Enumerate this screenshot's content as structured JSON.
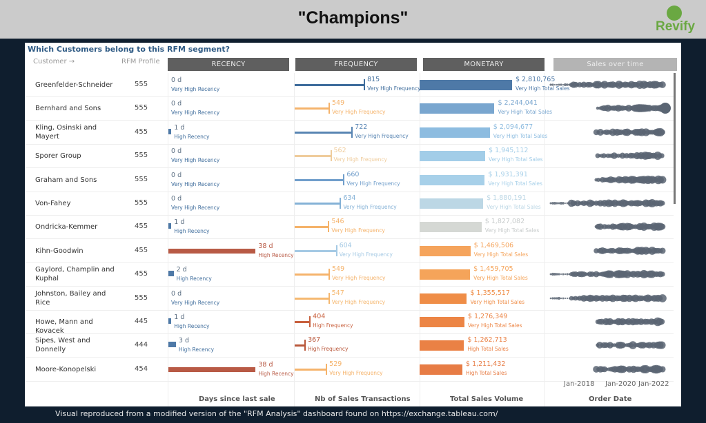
{
  "header": {
    "title": "\"Champions\"",
    "logo_text": "Revify"
  },
  "panel": {
    "question": "Which Customers belong to this RFM segment?",
    "col_customer": "Customer →",
    "col_rfm": "RFM Profile",
    "headers": {
      "recency": "RECENCY",
      "frequency": "FREQUENCY",
      "monetary": "MONETARY",
      "sales": "Sales over time"
    },
    "axis_labels": {
      "recency": "Days since last sale",
      "frequency": "Nb of Sales Transactions",
      "monetary": "Total Sales Volume",
      "sales": "Order Date"
    },
    "date_ticks": [
      "Jan-2018",
      "Jan-2020",
      "Jan-2022"
    ]
  },
  "rows": [
    {
      "customer": "Greenfelder-Schneider",
      "rfm": "555",
      "recency_days": 0,
      "recency": "0 d",
      "recency_label": "Very High Recency",
      "frequency": 815,
      "frequency_text": "815",
      "frequency_label": "Very High Frequency",
      "monetary": 2810765,
      "monetary_text": "$ 2,810,765",
      "monetary_label": "Very High Total Sales",
      "fcolor": "#3f6d9c",
      "mcolor": "#4e79a7"
    },
    {
      "customer": "Bernhard and Sons",
      "rfm": "555",
      "recency_days": 0,
      "recency": "0 d",
      "recency_label": "Very High Recency",
      "frequency": 549,
      "frequency_text": "549",
      "frequency_label": "Very High Frequency",
      "monetary": 2244041,
      "monetary_text": "$ 2,244,041",
      "monetary_label": "Very High Total Sales",
      "fcolor": "#f5b36b",
      "mcolor": "#79a6cf"
    },
    {
      "customer": "Kling, Osinski and Mayert",
      "rfm": "455",
      "recency_days": 1,
      "recency": "1 d",
      "recency_label": "High Recency",
      "frequency": 722,
      "frequency_text": "722",
      "frequency_label": "Very High Frequency",
      "monetary": 2094677,
      "monetary_text": "$ 2,094,677",
      "monetary_label": "Very High Total Sales",
      "fcolor": "#5784b2",
      "mcolor": "#8dbce0"
    },
    {
      "customer": "Sporer Group",
      "rfm": "555",
      "recency_days": 0,
      "recency": "0 d",
      "recency_label": "Very High Recency",
      "frequency": 562,
      "frequency_text": "562",
      "frequency_label": "Very High Frequency",
      "monetary": 1945112,
      "monetary_text": "$ 1,945,112",
      "monetary_label": "Very High Total Sales",
      "fcolor": "#efcc9c",
      "mcolor": "#a2cde8"
    },
    {
      "customer": "Graham and Sons",
      "rfm": "555",
      "recency_days": 0,
      "recency": "0 d",
      "recency_label": "Very High Recency",
      "frequency": 660,
      "frequency_text": "660",
      "frequency_label": "Very High Frequency",
      "monetary": 1931391,
      "monetary_text": "$ 1,931,391",
      "monetary_label": "Very High Total Sales",
      "fcolor": "#709ecb",
      "mcolor": "#a7d0e9"
    },
    {
      "customer": "Von-Fahey",
      "rfm": "555",
      "recency_days": 0,
      "recency": "0 d",
      "recency_label": "Very High Recency",
      "frequency": 634,
      "frequency_text": "634",
      "frequency_label": "Very High Frequency",
      "monetary": 1880191,
      "monetary_text": "$ 1,880,191",
      "monetary_label": "Very High Total Sales",
      "fcolor": "#84b1d6",
      "mcolor": "#bcd7e5"
    },
    {
      "customer": "Ondricka-Kemmer",
      "rfm": "455",
      "recency_days": 1,
      "recency": "1 d",
      "recency_label": "High Recency",
      "frequency": 546,
      "frequency_text": "546",
      "frequency_label": "Very High Frequency",
      "monetary": 1827082,
      "monetary_text": "$ 1,827,082",
      "monetary_label": "Very High Total Sales",
      "fcolor": "#f5b36b",
      "mcolor": "#d5d8d4"
    },
    {
      "customer": "Kihn-Goodwin",
      "rfm": "455",
      "recency_days": 38,
      "recency": "38 d",
      "recency_label": "High Recency",
      "frequency": 604,
      "frequency_text": "604",
      "frequency_label": "Very High Frequency",
      "monetary": 1469506,
      "monetary_text": "$ 1,469,506",
      "monetary_label": "Very High Total Sales",
      "fcolor": "#a4c9e4",
      "mcolor": "#f5a45c"
    },
    {
      "customer": "Gaylord, Champlin and Kuphal",
      "rfm": "455",
      "recency_days": 2,
      "recency": "2 d",
      "recency_label": "High Recency",
      "frequency": 549,
      "frequency_text": "549",
      "frequency_label": "Very High Frequency",
      "monetary": 1459705,
      "monetary_text": "$ 1,459,705",
      "monetary_label": "Very High Total Sales",
      "fcolor": "#f5b36b",
      "mcolor": "#f5a45a"
    },
    {
      "customer": "Johnston, Bailey and Rice",
      "rfm": "555",
      "recency_days": 0,
      "recency": "0 d",
      "recency_label": "Very High Recency",
      "frequency": 547,
      "frequency_text": "547",
      "frequency_label": "Very High Frequency",
      "monetary": 1355517,
      "monetary_text": "$ 1,355,517",
      "monetary_label": "Very High Total Sales",
      "fcolor": "#f5b870",
      "mcolor": "#ef8d47"
    },
    {
      "customer": "Howe, Mann and Kovacek",
      "rfm": "445",
      "recency_days": 1,
      "recency": "1 d",
      "recency_label": "High Recency",
      "frequency": 404,
      "frequency_text": "404",
      "frequency_label": "High Frequency",
      "monetary": 1276349,
      "monetary_text": "$ 1,276,349",
      "monetary_label": "Very High Total Sales",
      "fcolor": "#c8603d",
      "mcolor": "#ec8545"
    },
    {
      "customer": "Sipes, West and Donnelly",
      "rfm": "444",
      "recency_days": 3,
      "recency": "3 d",
      "recency_label": "High Recency",
      "frequency": 367,
      "frequency_text": "367",
      "frequency_label": "High Frequency",
      "monetary": 1262713,
      "monetary_text": "$ 1,262,713",
      "monetary_label": "High Total Sales",
      "fcolor": "#b9573a",
      "mcolor": "#ea8145"
    },
    {
      "customer": "Moore-Konopelski",
      "rfm": "454",
      "recency_days": 38,
      "recency": "38 d",
      "recency_label": "High Recency",
      "frequency": 529,
      "frequency_text": "529",
      "frequency_label": "Very High Frequency",
      "monetary": 1211432,
      "monetary_text": "$ 1,211,432",
      "monetary_label": "High Total Sales",
      "fcolor": "#f5b36b",
      "mcolor": "#e77c45"
    }
  ],
  "colors": {
    "recency_high": "#b85a45",
    "recency_low": "#4e79a7",
    "sparkline": "#5a6573",
    "header_bg": "#5f5f5f"
  },
  "footer": "Visual reproduced from a modified version of the \"RFM Analysis\" dashboard found on https://exchange.tableau.com/"
}
